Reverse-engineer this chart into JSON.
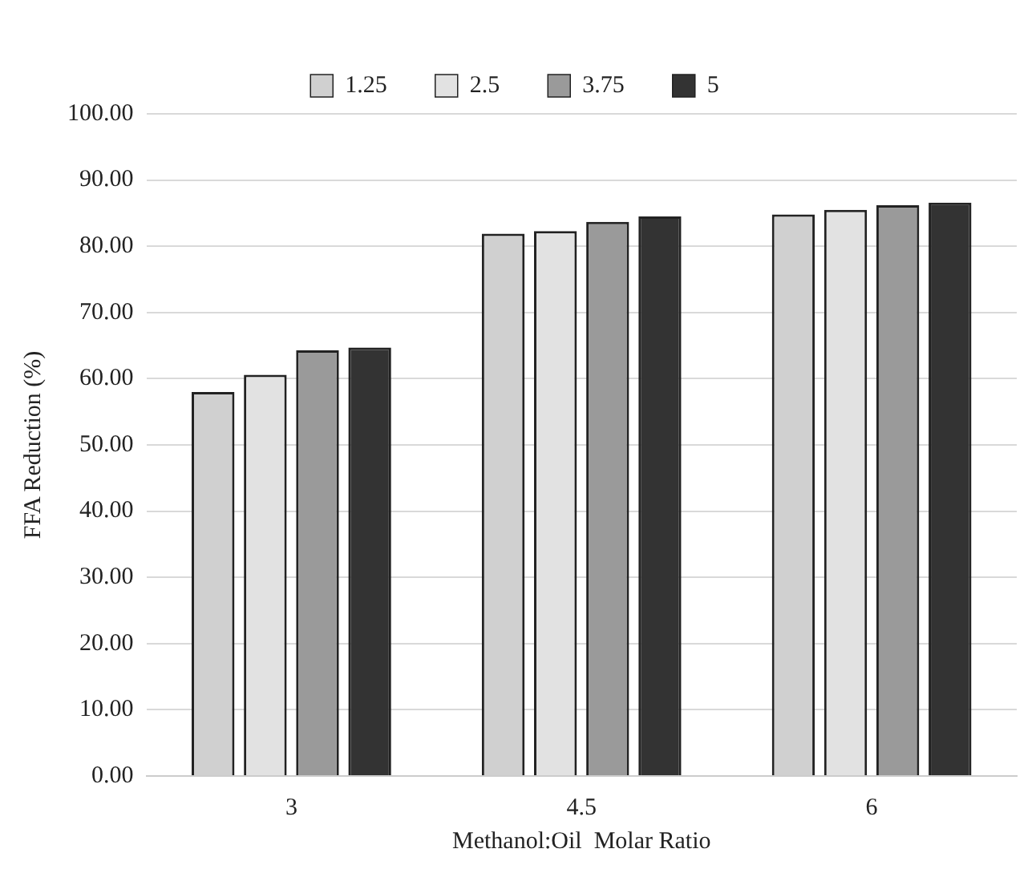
{
  "chart_data": {
    "type": "bar",
    "xlabel": "Methanol:Oil  Molar Ratio",
    "ylabel": "FFA Reduction (%)",
    "categories": [
      "3",
      "4.5",
      "6"
    ],
    "series": [
      {
        "name": "1.25",
        "color": "#d0d0d0",
        "values": [
          58.0,
          81.9,
          84.8
        ]
      },
      {
        "name": "2.5",
        "color": "#e2e2e2",
        "values": [
          60.6,
          82.3,
          85.5
        ]
      },
      {
        "name": "3.75",
        "color": "#9a9a9a",
        "values": [
          64.3,
          83.7,
          86.2
        ]
      },
      {
        "name": "5",
        "color": "#333333",
        "values": [
          64.7,
          84.5,
          86.6
        ]
      }
    ],
    "ylim": [
      0,
      100
    ],
    "yticks": [
      {
        "value": 0,
        "label": "0.00"
      },
      {
        "value": 10,
        "label": "10.00"
      },
      {
        "value": 20,
        "label": "20.00"
      },
      {
        "value": 30,
        "label": "30.00"
      },
      {
        "value": 40,
        "label": "40.00"
      },
      {
        "value": 50,
        "label": "50.00"
      },
      {
        "value": 60,
        "label": "60.00"
      },
      {
        "value": 70,
        "label": "70.00"
      },
      {
        "value": 80,
        "label": "80.00"
      },
      {
        "value": 90,
        "label": "90.00"
      },
      {
        "value": 100,
        "label": "100.00"
      }
    ],
    "grid": "y",
    "legend": "top"
  }
}
